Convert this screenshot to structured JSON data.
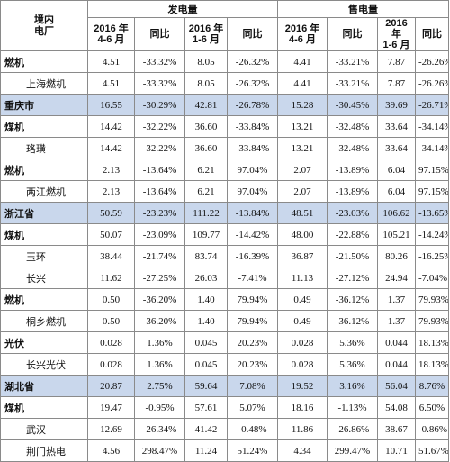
{
  "header": {
    "corner": "境内\n电厂",
    "group_generation": "发电量",
    "group_sales": "售电量",
    "col_q2": "2016 年\n4-6 月",
    "col_yoy": "同比",
    "col_h1": "2016 年\n1-6 月"
  },
  "rows": [
    {
      "name": "燃机",
      "style": "bold",
      "gen_q2": "4.51",
      "gen_q2_yoy": "-33.32%",
      "gen_h1": "8.05",
      "gen_h1_yoy": "-26.32%",
      "sale_q2": "4.41",
      "sale_q2_yoy": "-33.21%",
      "sale_h1": "7.87",
      "sale_h1_yoy": "-26.26%"
    },
    {
      "name": "上海燃机",
      "style": "indent",
      "gen_q2": "4.51",
      "gen_q2_yoy": "-33.32%",
      "gen_h1": "8.05",
      "gen_h1_yoy": "-26.32%",
      "sale_q2": "4.41",
      "sale_q2_yoy": "-33.21%",
      "sale_h1": "7.87",
      "sale_h1_yoy": "-26.26%"
    },
    {
      "name": "重庆市",
      "style": "region",
      "gen_q2": "16.55",
      "gen_q2_yoy": "-30.29%",
      "gen_h1": "42.81",
      "gen_h1_yoy": "-26.78%",
      "sale_q2": "15.28",
      "sale_q2_yoy": "-30.45%",
      "sale_h1": "39.69",
      "sale_h1_yoy": "-26.71%"
    },
    {
      "name": "煤机",
      "style": "bold",
      "gen_q2": "14.42",
      "gen_q2_yoy": "-32.22%",
      "gen_h1": "36.60",
      "gen_h1_yoy": "-33.84%",
      "sale_q2": "13.21",
      "sale_q2_yoy": "-32.48%",
      "sale_h1": "33.64",
      "sale_h1_yoy": "-34.14%"
    },
    {
      "name": "珞璜",
      "style": "indent",
      "gen_q2": "14.42",
      "gen_q2_yoy": "-32.22%",
      "gen_h1": "36.60",
      "gen_h1_yoy": "-33.84%",
      "sale_q2": "13.21",
      "sale_q2_yoy": "-32.48%",
      "sale_h1": "33.64",
      "sale_h1_yoy": "-34.14%"
    },
    {
      "name": "燃机",
      "style": "bold",
      "gen_q2": "2.13",
      "gen_q2_yoy": "-13.64%",
      "gen_h1": "6.21",
      "gen_h1_yoy": "97.04%",
      "sale_q2": "2.07",
      "sale_q2_yoy": "-13.89%",
      "sale_h1": "6.04",
      "sale_h1_yoy": "97.15%"
    },
    {
      "name": "两江燃机",
      "style": "indent",
      "gen_q2": "2.13",
      "gen_q2_yoy": "-13.64%",
      "gen_h1": "6.21",
      "gen_h1_yoy": "97.04%",
      "sale_q2": "2.07",
      "sale_q2_yoy": "-13.89%",
      "sale_h1": "6.04",
      "sale_h1_yoy": "97.15%"
    },
    {
      "name": "浙江省",
      "style": "region",
      "gen_q2": "50.59",
      "gen_q2_yoy": "-23.23%",
      "gen_h1": "111.22",
      "gen_h1_yoy": "-13.84%",
      "sale_q2": "48.51",
      "sale_q2_yoy": "-23.03%",
      "sale_h1": "106.62",
      "sale_h1_yoy": "-13.65%"
    },
    {
      "name": "煤机",
      "style": "bold",
      "gen_q2": "50.07",
      "gen_q2_yoy": "-23.09%",
      "gen_h1": "109.77",
      "gen_h1_yoy": "-14.42%",
      "sale_q2": "48.00",
      "sale_q2_yoy": "-22.88%",
      "sale_h1": "105.21",
      "sale_h1_yoy": "-14.24%"
    },
    {
      "name": "玉环",
      "style": "indent",
      "gen_q2": "38.44",
      "gen_q2_yoy": "-21.74%",
      "gen_h1": "83.74",
      "gen_h1_yoy": "-16.39%",
      "sale_q2": "36.87",
      "sale_q2_yoy": "-21.50%",
      "sale_h1": "80.26",
      "sale_h1_yoy": "-16.25%"
    },
    {
      "name": "长兴",
      "style": "indent",
      "gen_q2": "11.62",
      "gen_q2_yoy": "-27.25%",
      "gen_h1": "26.03",
      "gen_h1_yoy": "-7.41%",
      "sale_q2": "11.13",
      "sale_q2_yoy": "-27.12%",
      "sale_h1": "24.94",
      "sale_h1_yoy": "-7.04%"
    },
    {
      "name": "燃机",
      "style": "bold",
      "gen_q2": "0.50",
      "gen_q2_yoy": "-36.20%",
      "gen_h1": "1.40",
      "gen_h1_yoy": "79.94%",
      "sale_q2": "0.49",
      "sale_q2_yoy": "-36.12%",
      "sale_h1": "1.37",
      "sale_h1_yoy": "79.93%"
    },
    {
      "name": "桐乡燃机",
      "style": "indent",
      "gen_q2": "0.50",
      "gen_q2_yoy": "-36.20%",
      "gen_h1": "1.40",
      "gen_h1_yoy": "79.94%",
      "sale_q2": "0.49",
      "sale_q2_yoy": "-36.12%",
      "sale_h1": "1.37",
      "sale_h1_yoy": "79.93%"
    },
    {
      "name": "光伏",
      "style": "bold",
      "gen_q2": "0.028",
      "gen_q2_yoy": "1.36%",
      "gen_h1": "0.045",
      "gen_h1_yoy": "20.23%",
      "sale_q2": "0.028",
      "sale_q2_yoy": "5.36%",
      "sale_h1": "0.044",
      "sale_h1_yoy": "18.13%"
    },
    {
      "name": "长兴光伏",
      "style": "indent",
      "gen_q2": "0.028",
      "gen_q2_yoy": "1.36%",
      "gen_h1": "0.045",
      "gen_h1_yoy": "20.23%",
      "sale_q2": "0.028",
      "sale_q2_yoy": "5.36%",
      "sale_h1": "0.044",
      "sale_h1_yoy": "18.13%"
    },
    {
      "name": "湖北省",
      "style": "region",
      "gen_q2": "20.87",
      "gen_q2_yoy": "2.75%",
      "gen_h1": "59.64",
      "gen_h1_yoy": "7.08%",
      "sale_q2": "19.52",
      "sale_q2_yoy": "3.16%",
      "sale_h1": "56.04",
      "sale_h1_yoy": "8.76%"
    },
    {
      "name": "煤机",
      "style": "bold",
      "gen_q2": "19.47",
      "gen_q2_yoy": "-0.95%",
      "gen_h1": "57.61",
      "gen_h1_yoy": "5.07%",
      "sale_q2": "18.16",
      "sale_q2_yoy": "-1.13%",
      "sale_h1": "54.08",
      "sale_h1_yoy": "6.50%"
    },
    {
      "name": "武汉",
      "style": "indent",
      "gen_q2": "12.69",
      "gen_q2_yoy": "-26.34%",
      "gen_h1": "41.42",
      "gen_h1_yoy": "-0.48%",
      "sale_q2": "11.86",
      "sale_q2_yoy": "-26.86%",
      "sale_h1": "38.67",
      "sale_h1_yoy": "-0.86%"
    },
    {
      "name": "荆门热电",
      "style": "indent",
      "gen_q2": "4.56",
      "gen_q2_yoy": "298.47%",
      "gen_h1": "11.24",
      "gen_h1_yoy": "51.24%",
      "sale_q2": "4.34",
      "sale_q2_yoy": "299.47%",
      "sale_h1": "10.71",
      "sale_h1_yoy": "51.67%"
    }
  ],
  "colors": {
    "region_row": "#c9d7ec",
    "border": "#8a8a8a"
  }
}
